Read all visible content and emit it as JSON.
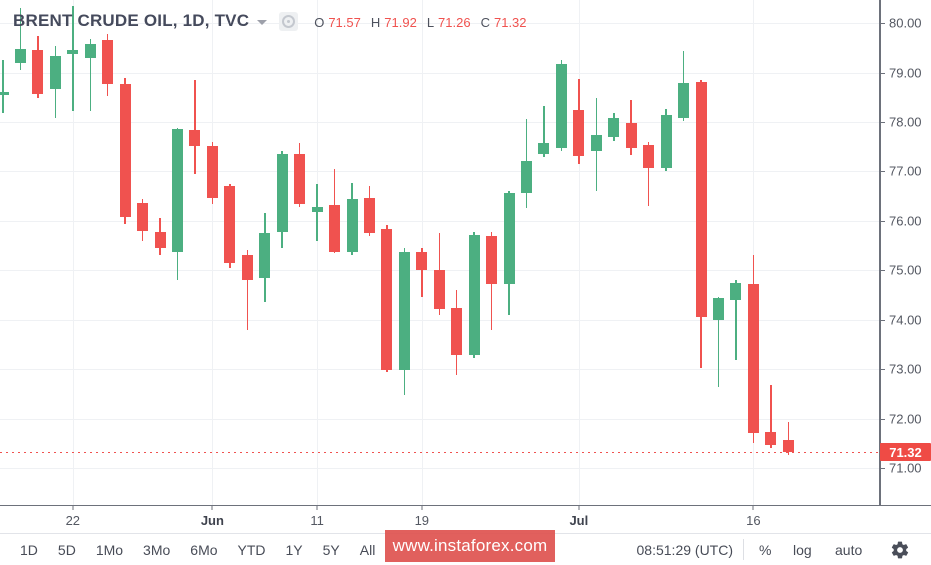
{
  "header": {
    "title": "BRENT CRUDE OIL, 1D, TVC",
    "ohlc": [
      {
        "key": "O",
        "value": "71.57"
      },
      {
        "key": "H",
        "value": "71.92"
      },
      {
        "key": "L",
        "value": "71.26"
      },
      {
        "key": "C",
        "value": "71.32"
      }
    ]
  },
  "price_axis": {
    "ticks": [
      "80.00",
      "79.00",
      "78.00",
      "77.00",
      "76.00",
      "75.00",
      "74.00",
      "73.00",
      "72.00",
      "71.00"
    ],
    "last_price_label": "71.32"
  },
  "time_axis": {
    "labels": [
      {
        "i": 4,
        "text": "22",
        "bold": false
      },
      {
        "i": 12,
        "text": "Jun",
        "bold": true
      },
      {
        "i": 18,
        "text": "11",
        "bold": false
      },
      {
        "i": 24,
        "text": "19",
        "bold": false
      },
      {
        "i": 33,
        "text": "Jul",
        "bold": true
      },
      {
        "i": 43,
        "text": "16",
        "bold": false
      }
    ]
  },
  "toolbar": {
    "ranges": [
      "1D",
      "5D",
      "1Mo",
      "3Mo",
      "6Mo",
      "YTD",
      "1Y",
      "5Y",
      "All"
    ],
    "clock": "08:51:29 (UTC)",
    "percent": "%",
    "log": "log",
    "auto": "auto",
    "gear_icon": "settings-gear"
  },
  "watermark": {
    "text": "www.instaforex.com"
  },
  "colors": {
    "up": "#4caf81",
    "down": "#f0524f",
    "last_price_bg": "#ef4b45",
    "watermark_bg": "#df5451",
    "grid": "#eff1f4",
    "axis_border": "#6d717b",
    "value_red": "#f0524f"
  },
  "chart_data": {
    "type": "candlestick",
    "title": "BRENT CRUDE OIL, 1D, TVC",
    "xlabel": "",
    "ylabel": "",
    "ylim": [
      70.25,
      80.47
    ],
    "grid": true,
    "legend_position": "top-left",
    "last_price": 71.32,
    "price_gridlines": [
      80,
      79,
      78,
      77,
      76,
      75,
      74,
      73,
      72,
      71
    ],
    "candles": [
      {
        "o": 78.55,
        "h": 79.25,
        "l": 78.18,
        "c": 78.6
      },
      {
        "o": 79.19,
        "h": 80.3,
        "l": 79.05,
        "c": 79.48
      },
      {
        "o": 79.45,
        "h": 79.74,
        "l": 78.49,
        "c": 78.57
      },
      {
        "o": 78.67,
        "h": 79.54,
        "l": 78.08,
        "c": 79.33
      },
      {
        "o": 79.38,
        "h": 80.35,
        "l": 78.23,
        "c": 79.45
      },
      {
        "o": 79.29,
        "h": 79.68,
        "l": 78.23,
        "c": 79.58
      },
      {
        "o": 79.66,
        "h": 79.78,
        "l": 78.53,
        "c": 78.77
      },
      {
        "o": 78.77,
        "h": 78.9,
        "l": 75.94,
        "c": 76.07
      },
      {
        "o": 76.37,
        "h": 76.45,
        "l": 75.6,
        "c": 75.8
      },
      {
        "o": 75.78,
        "h": 76.05,
        "l": 75.3,
        "c": 75.45
      },
      {
        "o": 75.36,
        "h": 77.88,
        "l": 74.8,
        "c": 77.85
      },
      {
        "o": 77.84,
        "h": 78.85,
        "l": 76.95,
        "c": 77.52
      },
      {
        "o": 77.52,
        "h": 77.6,
        "l": 76.35,
        "c": 76.47
      },
      {
        "o": 76.7,
        "h": 76.75,
        "l": 75.05,
        "c": 75.15
      },
      {
        "o": 75.3,
        "h": 75.42,
        "l": 73.79,
        "c": 74.8
      },
      {
        "o": 74.85,
        "h": 76.15,
        "l": 74.35,
        "c": 75.75
      },
      {
        "o": 75.77,
        "h": 77.42,
        "l": 75.46,
        "c": 77.36
      },
      {
        "o": 77.36,
        "h": 77.58,
        "l": 76.29,
        "c": 76.35
      },
      {
        "o": 76.17,
        "h": 76.75,
        "l": 75.6,
        "c": 76.29
      },
      {
        "o": 76.33,
        "h": 77.04,
        "l": 75.34,
        "c": 75.36
      },
      {
        "o": 75.36,
        "h": 76.77,
        "l": 75.3,
        "c": 76.45
      },
      {
        "o": 76.47,
        "h": 76.71,
        "l": 75.7,
        "c": 75.76
      },
      {
        "o": 75.84,
        "h": 75.92,
        "l": 72.95,
        "c": 72.98
      },
      {
        "o": 72.98,
        "h": 75.45,
        "l": 72.47,
        "c": 75.38
      },
      {
        "o": 75.38,
        "h": 75.45,
        "l": 74.45,
        "c": 75.0
      },
      {
        "o": 75.0,
        "h": 75.76,
        "l": 74.09,
        "c": 74.21
      },
      {
        "o": 74.23,
        "h": 74.6,
        "l": 72.88,
        "c": 73.28
      },
      {
        "o": 73.28,
        "h": 75.78,
        "l": 73.22,
        "c": 75.72
      },
      {
        "o": 75.7,
        "h": 75.78,
        "l": 73.79,
        "c": 74.73
      },
      {
        "o": 74.73,
        "h": 76.6,
        "l": 74.09,
        "c": 76.57
      },
      {
        "o": 76.57,
        "h": 78.06,
        "l": 76.27,
        "c": 77.22
      },
      {
        "o": 77.36,
        "h": 78.33,
        "l": 77.3,
        "c": 77.57
      },
      {
        "o": 77.47,
        "h": 79.25,
        "l": 77.42,
        "c": 79.17
      },
      {
        "o": 78.25,
        "h": 78.87,
        "l": 77.16,
        "c": 77.32
      },
      {
        "o": 77.42,
        "h": 78.49,
        "l": 76.61,
        "c": 77.74
      },
      {
        "o": 77.7,
        "h": 78.18,
        "l": 77.62,
        "c": 78.08
      },
      {
        "o": 77.98,
        "h": 78.45,
        "l": 77.34,
        "c": 77.48
      },
      {
        "o": 77.54,
        "h": 77.6,
        "l": 76.31,
        "c": 77.06
      },
      {
        "o": 77.06,
        "h": 78.27,
        "l": 77.0,
        "c": 78.14
      },
      {
        "o": 78.08,
        "h": 79.44,
        "l": 78.02,
        "c": 78.79
      },
      {
        "o": 78.81,
        "h": 78.85,
        "l": 73.02,
        "c": 74.05
      },
      {
        "o": 73.99,
        "h": 74.45,
        "l": 72.64,
        "c": 74.43
      },
      {
        "o": 74.39,
        "h": 74.8,
        "l": 73.18,
        "c": 74.75
      },
      {
        "o": 74.73,
        "h": 75.3,
        "l": 71.51,
        "c": 71.71
      },
      {
        "o": 71.73,
        "h": 72.68,
        "l": 71.41,
        "c": 71.47
      },
      {
        "o": 71.57,
        "h": 71.92,
        "l": 71.26,
        "c": 71.32
      }
    ]
  }
}
